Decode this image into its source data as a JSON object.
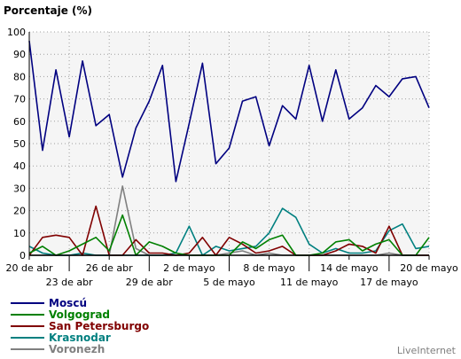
{
  "chart_data": {
    "type": "line",
    "title": "Porcentaje (%)",
    "ylim": [
      0,
      100
    ],
    "yticks": [
      0,
      10,
      20,
      30,
      40,
      50,
      60,
      70,
      80,
      90,
      100
    ],
    "x_tick_labels": [
      {
        "label": "20 de abr",
        "day": 0,
        "row": 1
      },
      {
        "label": "23 de abr",
        "day": 3,
        "row": 2
      },
      {
        "label": "26 de abr",
        "day": 6,
        "row": 1
      },
      {
        "label": "29 de abr",
        "day": 9,
        "row": 2
      },
      {
        "label": "2 de mayo",
        "day": 12,
        "row": 1
      },
      {
        "label": "5 de mayo",
        "day": 15,
        "row": 2
      },
      {
        "label": "8 de mayo",
        "day": 18,
        "row": 1
      },
      {
        "label": "11 de mayo",
        "day": 21,
        "row": 2
      },
      {
        "label": "14 de mayo",
        "day": 24,
        "row": 1
      },
      {
        "label": "17 de mayo",
        "day": 27,
        "row": 2
      },
      {
        "label": "20 de mayo",
        "day": 30,
        "row": 1
      }
    ],
    "x": [
      0,
      1,
      2,
      3,
      4,
      5,
      6,
      7,
      8,
      9,
      10,
      11,
      12,
      13,
      14,
      15,
      16,
      17,
      18,
      19,
      20,
      21,
      22,
      23,
      24,
      25,
      26,
      27,
      28,
      29,
      30
    ],
    "grid": true,
    "legend_position": "bottom-left",
    "series": [
      {
        "name": "Moscú",
        "color": "#000080",
        "values": [
          96,
          47,
          83,
          53,
          87,
          58,
          63,
          35,
          57,
          69,
          85,
          33,
          59,
          86,
          41,
          48,
          69,
          71,
          49,
          67,
          61,
          85,
          60,
          83,
          61,
          66,
          76,
          71,
          79,
          80,
          66
        ]
      },
      {
        "name": "Volgograd",
        "color": "#008000",
        "values": [
          1,
          4,
          0,
          2,
          5,
          8,
          2,
          18,
          0,
          6,
          4,
          1,
          0,
          0,
          0,
          0,
          6,
          3,
          7,
          9,
          0,
          0,
          1,
          6,
          7,
          2,
          5,
          7,
          0,
          0,
          8
        ]
      },
      {
        "name": "San Petersburgo",
        "color": "#800000",
        "values": [
          0,
          8,
          9,
          8,
          0,
          22,
          0,
          0,
          7,
          1,
          1,
          0,
          1,
          8,
          0,
          8,
          5,
          1,
          2,
          4,
          0,
          0,
          0,
          2,
          5,
          4,
          1,
          13,
          0,
          0,
          0
        ]
      },
      {
        "name": "Krasnodar",
        "color": "#008080",
        "values": [
          4,
          1,
          0,
          0,
          1,
          0,
          0,
          0,
          0,
          0,
          0,
          1,
          13,
          0,
          4,
          2,
          3,
          4,
          10,
          21,
          17,
          5,
          1,
          3,
          1,
          1,
          2,
          11,
          14,
          3,
          4
        ]
      },
      {
        "name": "Voronezh",
        "color": "#808080",
        "values": [
          0,
          0,
          0,
          0,
          0,
          0,
          0,
          31,
          3,
          0,
          0,
          0,
          0,
          0,
          0,
          1,
          2,
          0,
          1,
          0,
          0,
          0,
          0,
          0,
          0,
          0,
          0,
          1,
          0,
          0,
          0
        ]
      }
    ]
  },
  "brand": "LiveInternet"
}
